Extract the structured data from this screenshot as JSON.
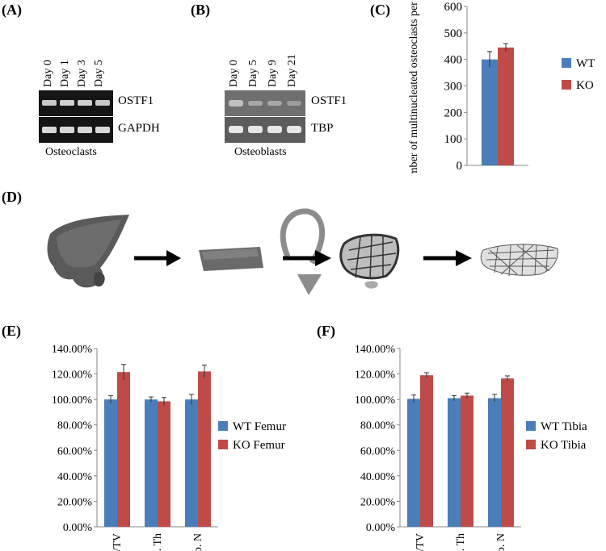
{
  "panels": {
    "a": {
      "label": "(A)",
      "lanes": [
        "Day 0",
        "Day 1",
        "Day 3",
        "Day 5"
      ],
      "genes": [
        "OSTF1",
        "GAPDH"
      ],
      "caption": "Osteoclasts"
    },
    "b": {
      "label": "(B)",
      "lanes": [
        "Day 0",
        "Day 5",
        "Day 9",
        "Day 21"
      ],
      "genes": [
        "OSTF1",
        "TBP"
      ],
      "caption": "Osteoblasts"
    },
    "c": {
      "label": "(C)"
    },
    "d": {
      "label": "(D)"
    },
    "e": {
      "label": "(E)"
    },
    "f": {
      "label": "(F)"
    }
  },
  "colors": {
    "wt": "#4a7ebb",
    "ko": "#be4b48",
    "arrow": "#000000",
    "rotate_arrow": "#8c8c8c"
  },
  "chart_data": [
    {
      "id": "c",
      "type": "bar",
      "categories": [
        ""
      ],
      "series": [
        {
          "name": "WT",
          "values": [
            400
          ],
          "error": [
            30
          ]
        },
        {
          "name": "KO",
          "values": [
            445
          ],
          "error": [
            15
          ]
        }
      ],
      "ylabel": "Number of multinucleated osteoclasts per well",
      "ylim": [
        0,
        600
      ],
      "yticks": [
        "0",
        "100",
        "200",
        "300",
        "400",
        "500",
        "600"
      ],
      "legend": "right",
      "grid": false
    },
    {
      "id": "e",
      "type": "bar",
      "categories": [
        "BV/TV",
        "Tb. Th",
        "Tb. N"
      ],
      "series": [
        {
          "name": "WT Femur",
          "values": [
            100,
            100,
            100
          ],
          "error": [
            3,
            2,
            4
          ]
        },
        {
          "name": "KO Femur",
          "values": [
            121.5,
            98.5,
            122
          ],
          "error": [
            6,
            3,
            5
          ]
        }
      ],
      "ylim": [
        0,
        140
      ],
      "yticks": [
        "0.00%",
        "20.00%",
        "40.00%",
        "60.00%",
        "80.00%",
        "100.00%",
        "120.00%",
        "140.00%"
      ],
      "legend": "right",
      "grid": false
    },
    {
      "id": "f",
      "type": "bar",
      "categories": [
        "BV/TV",
        "Tb. Th",
        "Tb. N"
      ],
      "series": [
        {
          "name": "WT Tibia",
          "values": [
            100.5,
            101,
            101
          ],
          "error": [
            3,
            2,
            3
          ]
        },
        {
          "name": "KO Tibia",
          "values": [
            119,
            103,
            116.5
          ],
          "error": [
            2,
            2,
            2
          ]
        }
      ],
      "ylim": [
        0,
        140
      ],
      "yticks": [
        "0.00%",
        "20.00%",
        "40.00%",
        "60.00%",
        "80.00%",
        "100.00%",
        "120.00%",
        "140.00%"
      ],
      "legend": "right",
      "grid": false
    }
  ]
}
